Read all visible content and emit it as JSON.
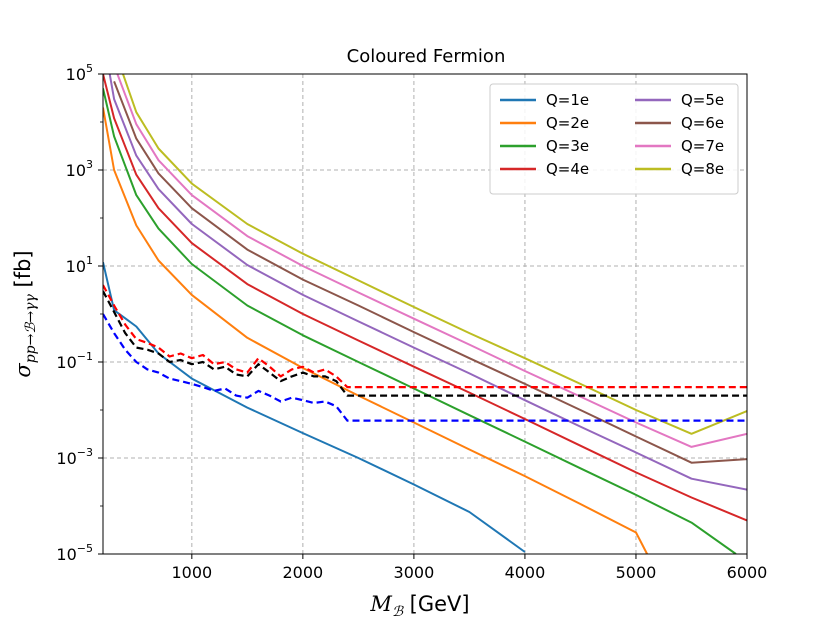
{
  "chart_data": {
    "type": "line",
    "title": "Coloured Fermion",
    "xlabel": "M_B [GeV]",
    "ylabel": "σ_pp→B→γγ [fb]",
    "xlabel_parts": {
      "symbol": "M",
      "sub": "ℬ",
      "unit": " [GeV]"
    },
    "ylabel_parts": {
      "symbol": "σ",
      "sub": "pp→ℬ→γγ",
      "unit": " [fb]"
    },
    "xscale": "linear",
    "yscale": "log",
    "xlim": [
      200,
      6000
    ],
    "ylim": [
      1e-05,
      100000.0
    ],
    "grid": true,
    "legend_position": "top-right",
    "x_ticks": [
      1000,
      2000,
      3000,
      4000,
      5000,
      6000
    ],
    "x_tick_labels": [
      "1000",
      "2000",
      "3000",
      "4000",
      "5000",
      "6000"
    ],
    "y_ticks": [
      1e-05,
      0.001,
      0.1,
      10.0,
      1000.0,
      100000.0
    ],
    "y_tick_labels": [
      {
        "base": "10",
        "exp": "−5"
      },
      {
        "base": "10",
        "exp": "−3"
      },
      {
        "base": "10",
        "exp": "−1"
      },
      {
        "base": "10",
        "exp": "1"
      },
      {
        "base": "10",
        "exp": "3"
      },
      {
        "base": "10",
        "exp": "5"
      }
    ],
    "series": [
      {
        "name": "Q=1e",
        "color": "#1f77b4",
        "style": "solid",
        "x": [
          200,
          300,
          500,
          700,
          1000,
          1500,
          2000,
          2500,
          3000,
          3500,
          4000
        ],
        "y": [
          12,
          1.2,
          0.55,
          0.15,
          0.045,
          0.0112,
          0.0033,
          0.001,
          0.00028,
          7.5e-05,
          1.1e-05
        ]
      },
      {
        "name": "Q=2e",
        "color": "#ff7f0e",
        "style": "solid",
        "x": [
          200,
          300,
          500,
          700,
          1000,
          1500,
          2000,
          2500,
          3000,
          3500,
          4000,
          4500,
          5000,
          5100
        ],
        "y": [
          20000,
          1000,
          70,
          13,
          2.5,
          0.32,
          0.075,
          0.02,
          0.0055,
          0.0015,
          0.00042,
          0.00011,
          2.8e-05,
          1e-05
        ]
      },
      {
        "name": "Q=3e",
        "color": "#2ca02c",
        "style": "solid",
        "x": [
          200,
          300,
          500,
          700,
          1000,
          1500,
          2000,
          2500,
          3000,
          3500,
          4000,
          4500,
          5000,
          5500,
          5900
        ],
        "y": [
          50000,
          5000,
          300,
          60,
          11,
          1.5,
          0.36,
          0.1,
          0.028,
          0.0078,
          0.0022,
          0.00061,
          0.00017,
          4.5e-05,
          1e-05
        ]
      },
      {
        "name": "Q=4e",
        "color": "#d62728",
        "style": "solid",
        "x": [
          200,
          300,
          500,
          700,
          1000,
          1500,
          2000,
          2500,
          3000,
          3500,
          4000,
          4500,
          5000,
          5500,
          6000
        ],
        "y": [
          100000,
          12000,
          800,
          160,
          30,
          4.2,
          1,
          0.28,
          0.08,
          0.023,
          0.0065,
          0.0018,
          0.0005,
          0.00015,
          5e-05
        ]
      },
      {
        "name": "Q=5e",
        "color": "#9467bd",
        "style": "solid",
        "x": [
          260,
          300,
          500,
          700,
          1000,
          1500,
          2000,
          2500,
          3000,
          3500,
          4000,
          4500,
          5000,
          5500,
          6000
        ],
        "y": [
          100000,
          30000,
          2000,
          400,
          75,
          10.5,
          2.5,
          0.7,
          0.2,
          0.058,
          0.016,
          0.0045,
          0.0013,
          0.00037,
          0.00022
        ]
      },
      {
        "name": "Q=6e",
        "color": "#8c564b",
        "style": "solid",
        "x": [
          300,
          500,
          700,
          1000,
          1500,
          2000,
          2500,
          3000,
          3500,
          4000,
          4500,
          5000,
          5500,
          6000
        ],
        "y": [
          70000,
          4500,
          850,
          160,
          22,
          5.2,
          1.5,
          0.42,
          0.12,
          0.035,
          0.01,
          0.0028,
          0.0008,
          0.00095
        ]
      },
      {
        "name": "Q=7e",
        "color": "#e377c2",
        "style": "solid",
        "x": [
          330,
          500,
          700,
          1000,
          1500,
          2000,
          2500,
          3000,
          3500,
          4000,
          4500,
          5000,
          5500,
          6000
        ],
        "y": [
          100000,
          9000,
          1600,
          300,
          42,
          10,
          2.8,
          0.8,
          0.23,
          0.065,
          0.019,
          0.0055,
          0.0017,
          0.0032
        ]
      },
      {
        "name": "Q=8e",
        "color": "#bcbd22",
        "style": "solid",
        "x": [
          380,
          500,
          700,
          1000,
          1500,
          2000,
          2500,
          3000,
          3500,
          4000,
          4500,
          5000,
          5500,
          6000
        ],
        "y": [
          100000,
          16000,
          2800,
          520,
          75,
          18,
          5,
          1.4,
          0.4,
          0.12,
          0.035,
          0.01,
          0.0032,
          0.0095
        ]
      },
      {
        "name": "limit (red)",
        "color": "#ff0000",
        "style": "dashed",
        "x": [
          200,
          300,
          400,
          500,
          600,
          700,
          800,
          900,
          1000,
          1100,
          1200,
          1300,
          1400,
          1500,
          1600,
          1700,
          1800,
          1900,
          2000,
          2100,
          2200,
          2300,
          2400,
          6000
        ],
        "y": [
          4,
          1.5,
          0.6,
          0.3,
          0.25,
          0.2,
          0.13,
          0.15,
          0.12,
          0.14,
          0.09,
          0.1,
          0.07,
          0.06,
          0.12,
          0.08,
          0.05,
          0.07,
          0.08,
          0.06,
          0.07,
          0.05,
          0.03,
          0.03
        ]
      },
      {
        "name": "limit (black)",
        "color": "#000000",
        "style": "dashed",
        "x": [
          200,
          300,
          400,
          500,
          600,
          700,
          800,
          900,
          1000,
          1100,
          1200,
          1300,
          1400,
          1500,
          1600,
          1700,
          1800,
          1900,
          2000,
          2100,
          2200,
          2300,
          2400,
          6000
        ],
        "y": [
          3,
          1.1,
          0.4,
          0.2,
          0.18,
          0.15,
          0.1,
          0.11,
          0.09,
          0.1,
          0.07,
          0.08,
          0.055,
          0.05,
          0.09,
          0.06,
          0.04,
          0.05,
          0.06,
          0.05,
          0.05,
          0.04,
          0.02,
          0.02
        ]
      },
      {
        "name": "limit (blue)",
        "color": "#0000ff",
        "style": "dashed",
        "x": [
          200,
          300,
          400,
          500,
          600,
          700,
          800,
          900,
          1000,
          1100,
          1200,
          1300,
          1400,
          1500,
          1600,
          1700,
          1800,
          1900,
          2000,
          2100,
          2200,
          2300,
          2400,
          6000
        ],
        "y": [
          1,
          0.4,
          0.18,
          0.1,
          0.07,
          0.06,
          0.045,
          0.04,
          0.035,
          0.03,
          0.025,
          0.028,
          0.02,
          0.018,
          0.025,
          0.02,
          0.015,
          0.018,
          0.016,
          0.014,
          0.015,
          0.012,
          0.006,
          0.006
        ]
      }
    ],
    "legend_entries": [
      "Q=1e",
      "Q=2e",
      "Q=3e",
      "Q=4e",
      "Q=5e",
      "Q=6e",
      "Q=7e",
      "Q=8e"
    ]
  }
}
